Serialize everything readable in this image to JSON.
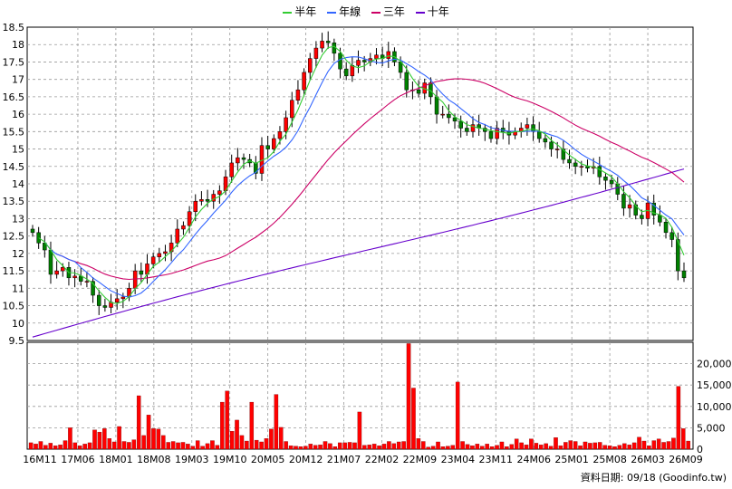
{
  "legend": {
    "items": [
      {
        "label": "半年",
        "color": "#33cc33"
      },
      {
        "label": "年線",
        "color": "#3366ff"
      },
      {
        "label": "三年",
        "color": "#cc0066"
      },
      {
        "label": "十年",
        "color": "#6600cc"
      }
    ]
  },
  "source_text": "資料日期: 09/18 (Goodinfo.tw)",
  "colors": {
    "up": "#ff0000",
    "down": "#008000",
    "volume": "#ff0000",
    "grid": "#999999"
  },
  "chart_data": [
    {
      "type": "line",
      "title": "",
      "xlabel": "",
      "ylabel": "",
      "ylim": [
        9.5,
        18.5
      ],
      "yticks": [
        "9.5",
        "10",
        "10.5",
        "11",
        "11.5",
        "12",
        "12.5",
        "13",
        "13.5",
        "14",
        "14.5",
        "15",
        "15.5",
        "16",
        "16.5",
        "17",
        "17.5",
        "18",
        "18.5"
      ],
      "xticks": [
        "16M11",
        "17M06",
        "18M01",
        "18M08",
        "19M03",
        "19M10",
        "20M05",
        "20M12",
        "21M07",
        "22M02",
        "22M09",
        "23M04",
        "23M11",
        "24M06",
        "25M01",
        "25M08",
        "26M03",
        "26M09"
      ],
      "grid": true,
      "legend_position": "top",
      "price_close": [
        12.6,
        12.3,
        12.1,
        11.4,
        11.5,
        11.6,
        11.3,
        11.35,
        11.2,
        11.2,
        10.8,
        10.5,
        10.45,
        10.6,
        10.7,
        10.75,
        11.0,
        11.5,
        11.4,
        11.7,
        11.9,
        12.0,
        12.05,
        12.3,
        12.7,
        12.8,
        13.2,
        13.5,
        13.55,
        13.5,
        13.7,
        13.8,
        14.2,
        14.6,
        14.75,
        14.7,
        14.6,
        14.3,
        15.1,
        15.0,
        15.3,
        15.5,
        15.9,
        16.4,
        16.7,
        17.2,
        17.6,
        17.9,
        18.1,
        18.05,
        17.75,
        17.3,
        17.1,
        17.4,
        17.55,
        17.5,
        17.6,
        17.7,
        17.6,
        17.8,
        17.5,
        17.2,
        16.7,
        16.7,
        16.6,
        16.9,
        16.5,
        16.0,
        16.0,
        15.9,
        15.8,
        15.6,
        15.5,
        15.7,
        15.6,
        15.5,
        15.3,
        15.6,
        15.5,
        15.4,
        15.5,
        15.6,
        15.7,
        15.5,
        15.3,
        15.2,
        15.0,
        15.0,
        14.7,
        14.6,
        14.5,
        14.5,
        14.45,
        14.5,
        14.2,
        14.1,
        14.0,
        13.7,
        13.3,
        13.4,
        13.1,
        13.0,
        13.45,
        13.1,
        12.9,
        12.6,
        12.4,
        11.5,
        11.3
      ],
      "volume_ylim": [
        0,
        25000
      ],
      "volume_ticks": [
        "0",
        "5,000",
        "10,000",
        "15,000",
        "20,000"
      ],
      "volume": [
        1500,
        1200,
        1800,
        900,
        1400,
        800,
        1000,
        2000,
        5000,
        1500,
        800,
        1200,
        1500,
        4500,
        4000,
        4800,
        2500,
        1700,
        5300,
        1800,
        1600,
        2200,
        12500,
        3200,
        8000,
        4800,
        4700,
        3200,
        1600,
        1800,
        1500,
        1600,
        1200,
        700,
        2000,
        700,
        1300,
        2000,
        900,
        11000,
        13600,
        4200,
        6800,
        3200,
        1900,
        11000,
        2100,
        1700,
        2500,
        4700,
        12800,
        5100,
        1800,
        800,
        700,
        600,
        700,
        1200,
        900,
        1000,
        1800,
        1300,
        600,
        1500,
        1500,
        1600,
        1500,
        8700,
        900,
        1000,
        1200,
        800,
        1200,
        1800,
        1300,
        1700,
        1800,
        24700,
        14300,
        2500,
        1800,
        500,
        700,
        1700,
        600,
        700,
        900,
        15700,
        1800,
        1100,
        800,
        1200,
        700,
        1200,
        600,
        900,
        1700,
        600,
        1100,
        2400,
        1500,
        1000,
        2400,
        1400,
        1000,
        1300,
        700,
        2700,
        800,
        1600,
        2000,
        1800,
        800,
        1700,
        1400,
        1500,
        1600,
        900,
        800,
        600,
        900,
        1300,
        1000,
        1500,
        2800,
        1900,
        800,
        2000,
        2400,
        1600,
        1800,
        2600,
        14700,
        4800,
        1900
      ]
    }
  ]
}
